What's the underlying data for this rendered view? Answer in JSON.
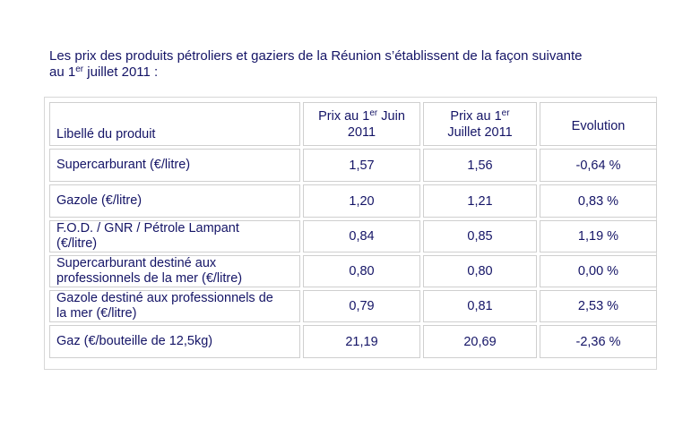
{
  "intro": {
    "line1": "Les prix des produits pétroliers et gaziers de la Réunion s’établissent de la façon suivante",
    "line2_prefix": "au 1",
    "line2_sup": "er",
    "line2_suffix": " juillet 2011 :"
  },
  "table": {
    "headers": {
      "label": "Libellé du produit",
      "col1_prefix": "Prix au 1",
      "col1_sup": "er",
      "col1_suffix": " Juin",
      "col1_year": "2011",
      "col2_prefix": "Prix au 1",
      "col2_sup": "er",
      "col2_line2": "Juillet 2011",
      "col3": "Evolution"
    },
    "rows": [
      {
        "label_line1": "Supercarburant  (€/litre)",
        "label_line2": "",
        "june": "1,57",
        "july": "1,56",
        "evolution": "-0,64 %"
      },
      {
        "label_line1": "Gazole  (€/litre)",
        "label_line2": "",
        "june": "1,20",
        "july": "1,21",
        "evolution": "0,83 %"
      },
      {
        "label_line1": "F.O.D. / GNR / Pétrole Lampant",
        "label_line2": "(€/litre)",
        "june": "0,84",
        "july": "0,85",
        "evolution": "1,19 %"
      },
      {
        "label_line1": "Supercarburant destiné aux",
        "label_line2": "professionnels de la mer   (€/litre)",
        "june": "0,80",
        "july": "0,80",
        "evolution": "0,00 %"
      },
      {
        "label_line1": "Gazole destiné aux professionnels de",
        "label_line2": "la mer   (€/litre)",
        "june": "0,79",
        "july": "0,81",
        "evolution": "2,53 %"
      },
      {
        "label_line1": "Gaz (€/bouteille de 12,5kg)",
        "label_line2": "",
        "june": "21,19",
        "july": "20,69",
        "evolution": "-2,36 %"
      }
    ]
  },
  "colors": {
    "text": "#141466",
    "border": "#cfcfcf"
  }
}
